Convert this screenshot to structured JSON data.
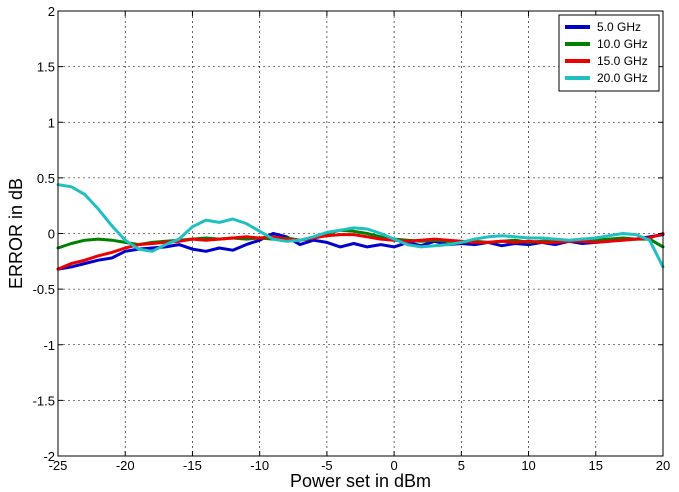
{
  "chart_data": {
    "type": "line",
    "title": "",
    "xlabel": "Power set in dBm",
    "ylabel": "ERROR in dB",
    "xlim": [
      -25,
      20
    ],
    "ylim": [
      -2,
      2
    ],
    "xticks": [
      -25,
      -20,
      -15,
      -10,
      -5,
      0,
      5,
      10,
      15,
      20
    ],
    "yticks": [
      -2,
      -1.5,
      -1,
      -0.5,
      0,
      0.5,
      1,
      1.5,
      2
    ],
    "xtick_labels": [
      "-25",
      "-20",
      "-15",
      "-10",
      "-5",
      "0",
      "5",
      "10",
      "15",
      "20"
    ],
    "ytick_labels": [
      "-2",
      "-1.5",
      "-1",
      "-0.5",
      "0",
      "0.5",
      "1",
      "1.5",
      "2"
    ],
    "grid": true,
    "legend_position": "top-right",
    "series": [
      {
        "name": "5.0 GHz",
        "color": "#0000cc",
        "x": [
          -25,
          -24,
          -23,
          -22,
          -21,
          -20,
          -19,
          -18,
          -17,
          -16,
          -15,
          -14,
          -13,
          -12,
          -11,
          -10,
          -9,
          -8,
          -7,
          -6,
          -5,
          -4,
          -3,
          -2,
          -1,
          0,
          1,
          2,
          3,
          4,
          5,
          6,
          7,
          8,
          9,
          10,
          11,
          12,
          13,
          14,
          15,
          16,
          17,
          18,
          19,
          20
        ],
        "y": [
          -0.32,
          -0.3,
          -0.27,
          -0.24,
          -0.22,
          -0.16,
          -0.14,
          -0.13,
          -0.12,
          -0.1,
          -0.14,
          -0.16,
          -0.13,
          -0.15,
          -0.1,
          -0.06,
          0.0,
          -0.03,
          -0.1,
          -0.06,
          -0.08,
          -0.12,
          -0.09,
          -0.12,
          -0.1,
          -0.12,
          -0.08,
          -0.11,
          -0.07,
          -0.1,
          -0.09,
          -0.1,
          -0.08,
          -0.11,
          -0.09,
          -0.1,
          -0.08,
          -0.1,
          -0.07,
          -0.09,
          -0.08,
          -0.07,
          -0.05,
          -0.05,
          -0.03,
          -0.01
        ]
      },
      {
        "name": "10.0 GHz",
        "color": "#008000",
        "x": [
          -25,
          -24,
          -23,
          -22,
          -21,
          -20,
          -19,
          -18,
          -17,
          -16,
          -15,
          -14,
          -13,
          -12,
          -11,
          -10,
          -9,
          -8,
          -7,
          -6,
          -5,
          -4,
          -3,
          -2,
          -1,
          0,
          1,
          2,
          3,
          4,
          5,
          6,
          7,
          8,
          9,
          10,
          11,
          12,
          13,
          14,
          15,
          16,
          17,
          18,
          19,
          20
        ],
        "y": [
          -0.13,
          -0.09,
          -0.06,
          -0.05,
          -0.06,
          -0.08,
          -0.1,
          -0.08,
          -0.07,
          -0.06,
          -0.05,
          -0.04,
          -0.05,
          -0.04,
          -0.05,
          -0.04,
          -0.05,
          -0.04,
          -0.06,
          -0.04,
          0.0,
          0.03,
          0.02,
          0.0,
          -0.03,
          -0.05,
          -0.06,
          -0.07,
          -0.06,
          -0.07,
          -0.08,
          -0.07,
          -0.08,
          -0.07,
          -0.06,
          -0.08,
          -0.07,
          -0.06,
          -0.07,
          -0.05,
          -0.06,
          -0.05,
          -0.04,
          -0.05,
          -0.05,
          -0.12
        ]
      },
      {
        "name": "15.0 GHz",
        "color": "#ee0000",
        "x": [
          -25,
          -24,
          -23,
          -22,
          -21,
          -20,
          -19,
          -18,
          -17,
          -16,
          -15,
          -14,
          -13,
          -12,
          -11,
          -10,
          -9,
          -8,
          -7,
          -6,
          -5,
          -4,
          -3,
          -2,
          -1,
          0,
          1,
          2,
          3,
          4,
          5,
          6,
          7,
          8,
          9,
          10,
          11,
          12,
          13,
          14,
          15,
          16,
          17,
          18,
          19,
          20
        ],
        "y": [
          -0.32,
          -0.27,
          -0.24,
          -0.2,
          -0.17,
          -0.13,
          -0.1,
          -0.09,
          -0.08,
          -0.07,
          -0.05,
          -0.06,
          -0.05,
          -0.04,
          -0.03,
          -0.04,
          -0.03,
          -0.05,
          -0.06,
          -0.04,
          -0.02,
          -0.01,
          -0.01,
          -0.03,
          -0.05,
          -0.06,
          -0.07,
          -0.06,
          -0.05,
          -0.06,
          -0.07,
          -0.08,
          -0.08,
          -0.07,
          -0.08,
          -0.07,
          -0.08,
          -0.08,
          -0.07,
          -0.07,
          -0.08,
          -0.07,
          -0.06,
          -0.05,
          -0.04,
          0.0
        ]
      },
      {
        "name": "20.0 GHz",
        "color": "#20c0c0",
        "x": [
          -25,
          -24,
          -23,
          -22,
          -21,
          -20,
          -19,
          -18,
          -17,
          -16,
          -15,
          -14,
          -13,
          -12,
          -11,
          -10,
          -9,
          -8,
          -7,
          -6,
          -5,
          -4,
          -3,
          -2,
          -1,
          0,
          1,
          2,
          3,
          4,
          5,
          6,
          7,
          8,
          9,
          10,
          11,
          12,
          13,
          14,
          15,
          16,
          17,
          18,
          19,
          20
        ],
        "y": [
          0.44,
          0.42,
          0.35,
          0.22,
          0.07,
          -0.06,
          -0.14,
          -0.16,
          -0.1,
          -0.05,
          0.06,
          0.12,
          0.1,
          0.13,
          0.09,
          0.02,
          -0.05,
          -0.07,
          -0.06,
          -0.03,
          0.01,
          0.03,
          0.05,
          0.04,
          0.0,
          -0.05,
          -0.1,
          -0.12,
          -0.11,
          -0.1,
          -0.08,
          -0.05,
          -0.03,
          -0.02,
          -0.03,
          -0.04,
          -0.04,
          -0.05,
          -0.06,
          -0.05,
          -0.04,
          -0.02,
          0.0,
          -0.01,
          -0.06,
          -0.3
        ]
      }
    ]
  }
}
